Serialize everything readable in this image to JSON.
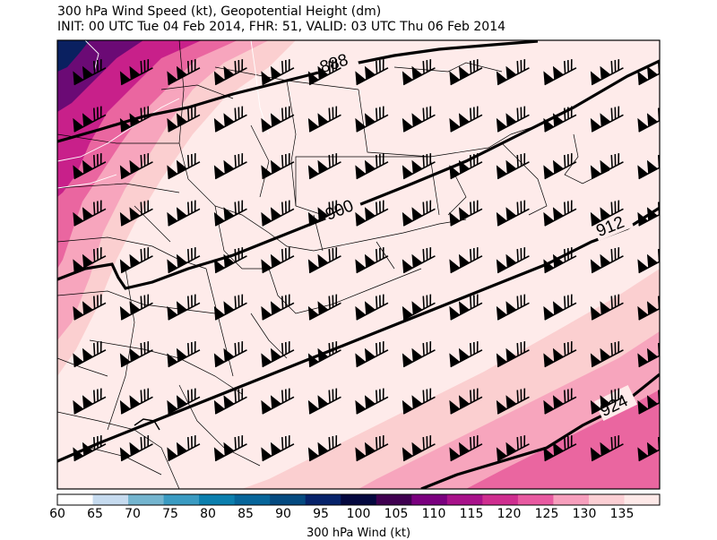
{
  "title": {
    "line1": "300 hPa Wind Speed (kt), Geopotential Height (dm)",
    "line2": "INIT: 00 UTC Tue 04 Feb 2014, FHR: 51, VALID: 03 UTC Thu 06 Feb 2014"
  },
  "contours": [
    {
      "label": "888"
    },
    {
      "label": "900"
    },
    {
      "label": "912"
    },
    {
      "label": "924"
    }
  ],
  "colorbar": {
    "title": "300 hPa Wind (kt)",
    "ticks": [
      "60",
      "65",
      "70",
      "75",
      "80",
      "85",
      "90",
      "95",
      "100",
      "105",
      "110",
      "115",
      "120",
      "125",
      "130",
      "135"
    ],
    "colors": [
      "#ffffff",
      "#c6dbef",
      "#74b5cf",
      "#3a9bc2",
      "#0b7fae",
      "#06659a",
      "#044a80",
      "#06226a",
      "#04083f",
      "#3f0050",
      "#7a007f",
      "#a8128a",
      "#cf2e8f",
      "#e85aa1",
      "#f79fbd",
      "#fccfd4",
      "#fee9e8"
    ]
  },
  "palette": {
    "bg": "#feebea",
    "pink1": "#fbcfd0",
    "pink2": "#f7a5bd",
    "pink3": "#ea66a0",
    "magenta": "#c8208a",
    "purple": "#6b0a75",
    "navy": "#0a2060"
  }
}
